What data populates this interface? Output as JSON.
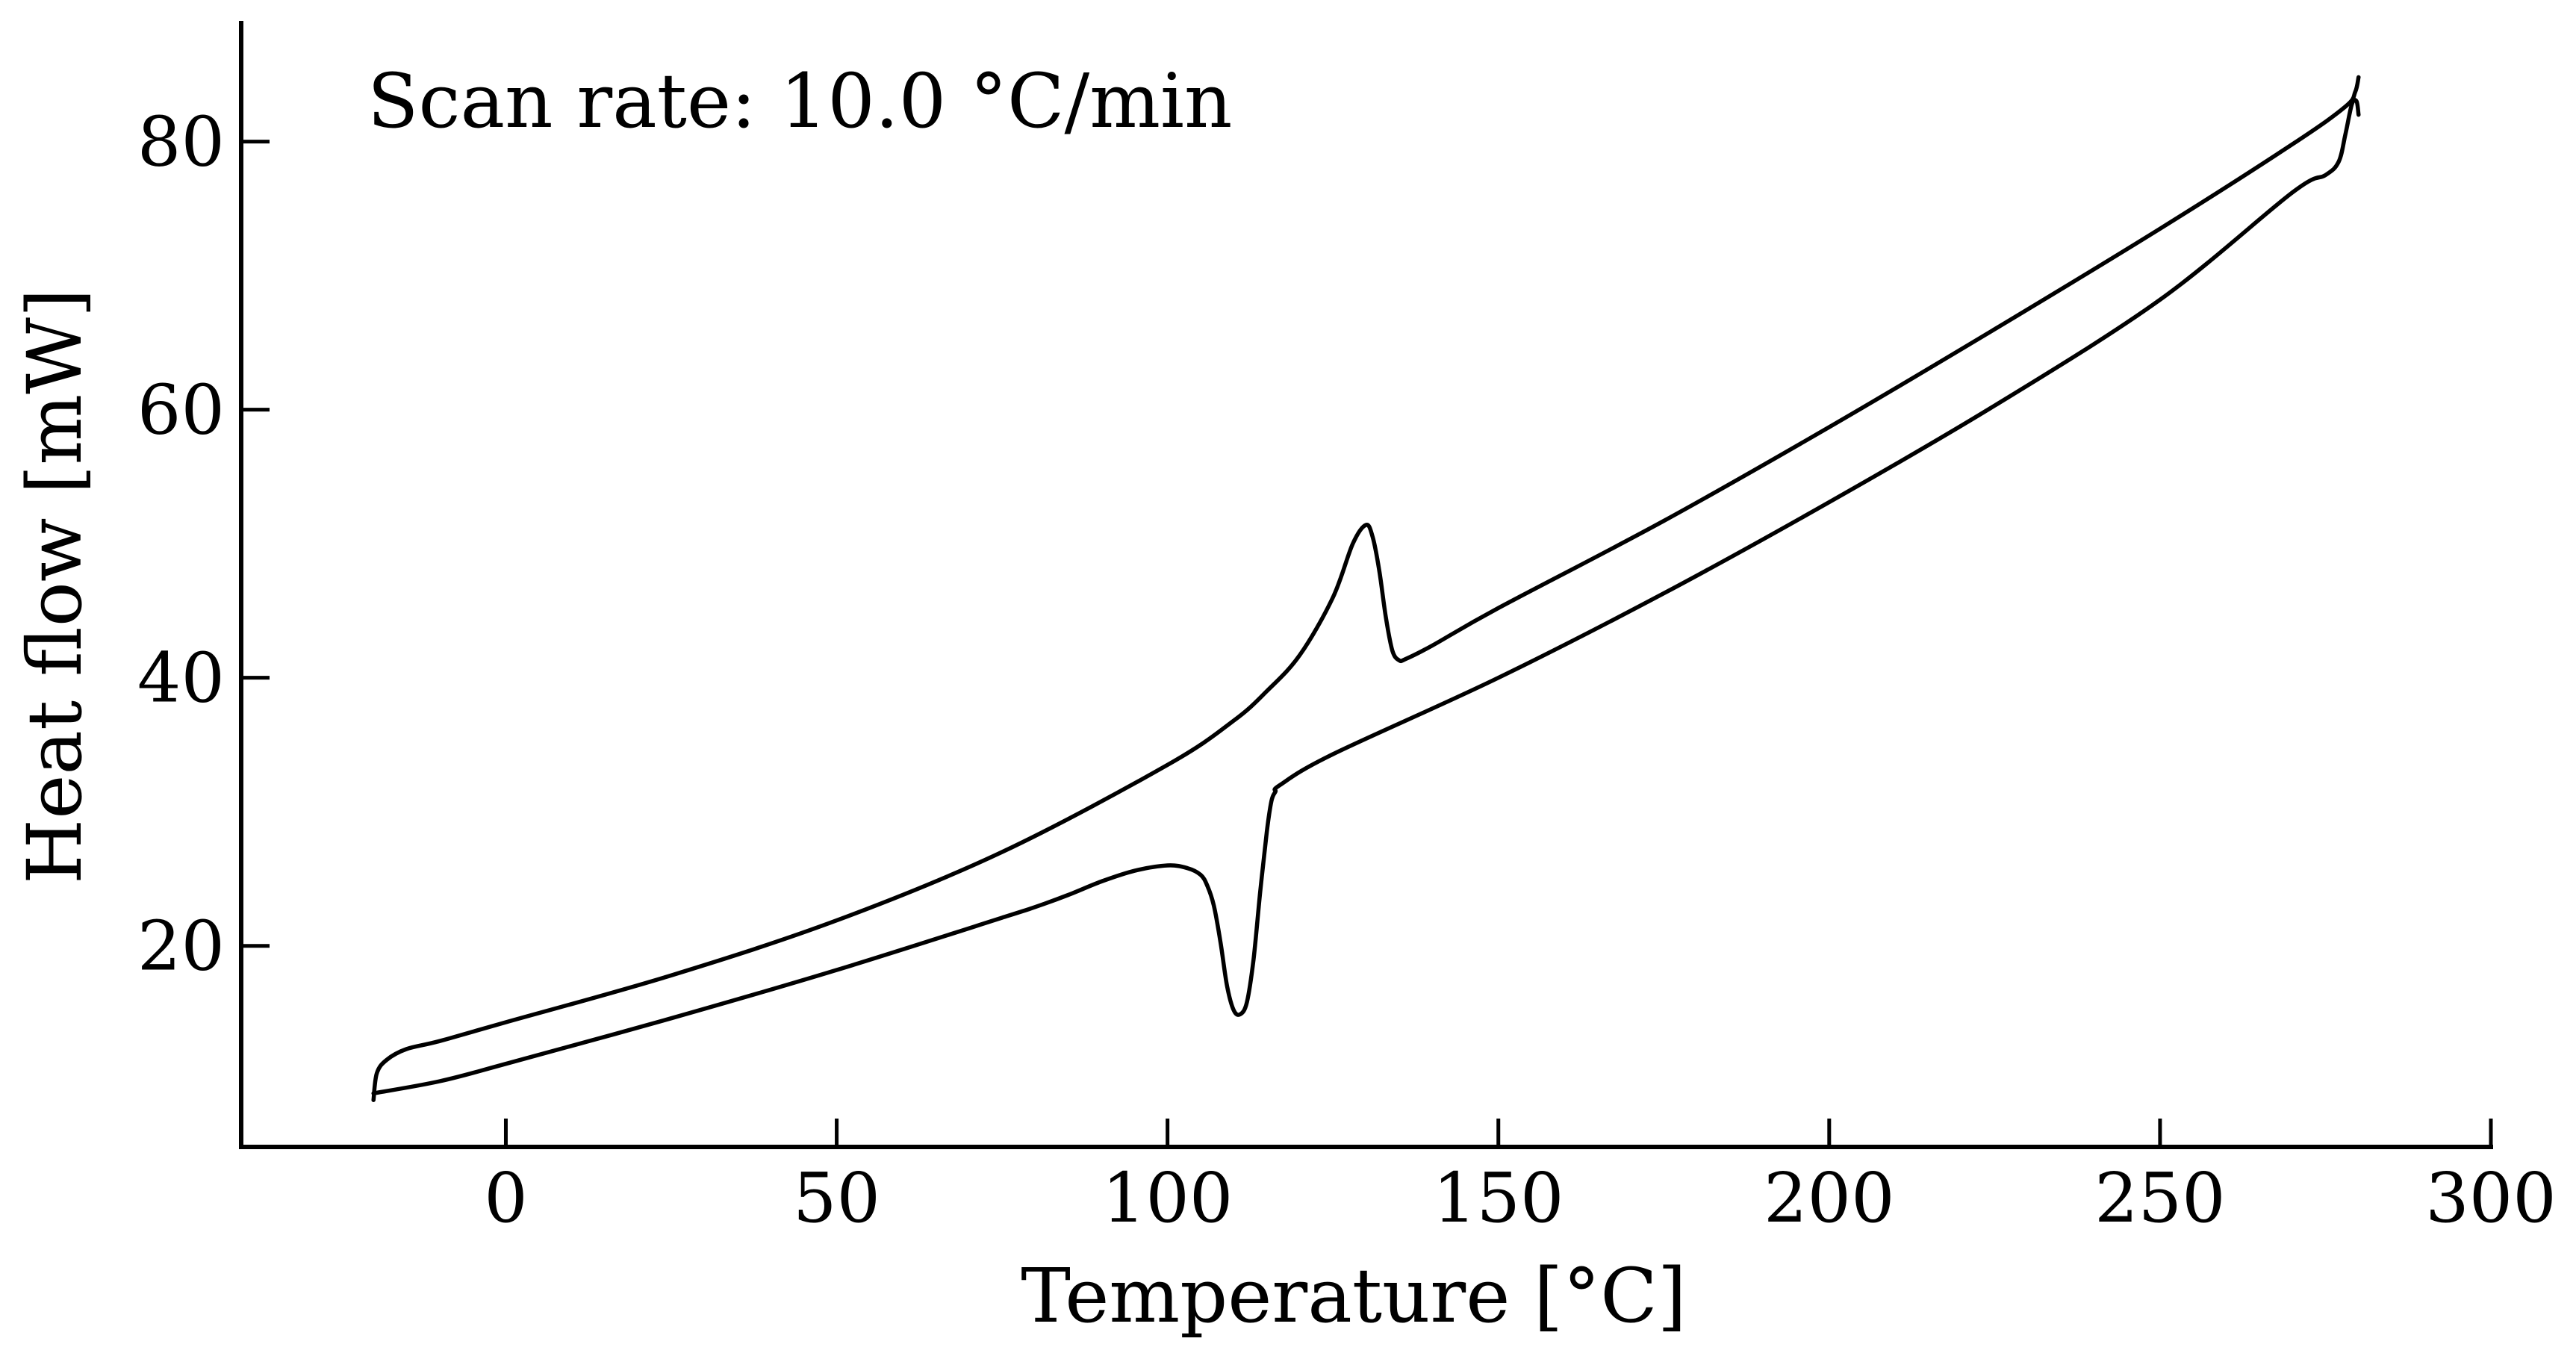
{
  "chart_data": {
    "type": "line",
    "title": "",
    "xlabel": "Temperature [°C]",
    "ylabel": "Heat flow [mW]",
    "annotation": "Scan rate: 10.0 °C/min",
    "xlim": [
      -40,
      300
    ],
    "ylim": [
      5,
      89
    ],
    "xticks": [
      0,
      50,
      100,
      150,
      200,
      250,
      300
    ],
    "yticks": [
      20,
      40,
      60,
      80
    ],
    "xtick_labels": [
      "0",
      "50",
      "100",
      "150",
      "200",
      "250",
      "300"
    ],
    "ytick_labels": [
      "20",
      "40",
      "60",
      "80"
    ],
    "grid": false,
    "color": "#000000",
    "series": [
      {
        "x": [
          -20,
          -19.5,
          -18,
          -15,
          -10,
          0,
          25,
          50,
          75,
          100,
          110,
          115,
          120,
          125,
          128,
          130,
          131,
          132,
          133,
          134,
          135,
          136,
          140,
          150,
          175,
          200,
          225,
          250,
          270,
          278,
          279.5,
          280
        ],
        "y": [
          8.5,
          10.5,
          11.5,
          12.3,
          12.9,
          14.3,
          17.8,
          21.9,
          27.0,
          33.5,
          36.8,
          39.0,
          41.7,
          46.0,
          50.0,
          51.4,
          50.5,
          48.0,
          44.5,
          42.0,
          41.3,
          41.4,
          42.4,
          45.2,
          51.7,
          58.7,
          66.0,
          73.5,
          79.8,
          82.6,
          83.7,
          84.8
        ]
      },
      {
        "x": [
          280,
          279.7,
          279,
          278,
          277,
          275,
          270,
          250,
          225,
          200,
          175,
          150,
          125,
          117,
          116.3,
          115.7,
          115,
          114,
          113,
          112,
          111,
          110,
          109,
          108,
          107,
          106,
          105,
          103,
          100,
          95,
          90,
          85,
          80,
          75,
          50,
          25,
          0,
          -10,
          -20
        ],
        "y": [
          82.0,
          83.0,
          82.8,
          80.5,
          78.5,
          77.5,
          76.2,
          68.2,
          60.3,
          53.1,
          46.3,
          40.0,
          34.3,
          32.0,
          31.5,
          30.8,
          28.5,
          24.0,
          19.0,
          15.8,
          14.9,
          15.2,
          17.0,
          20.3,
          23.0,
          24.5,
          25.3,
          25.8,
          26.0,
          25.6,
          24.8,
          23.8,
          22.9,
          22.1,
          18.2,
          14.6,
          11.2,
          9.9,
          9.0
        ]
      }
    ]
  }
}
